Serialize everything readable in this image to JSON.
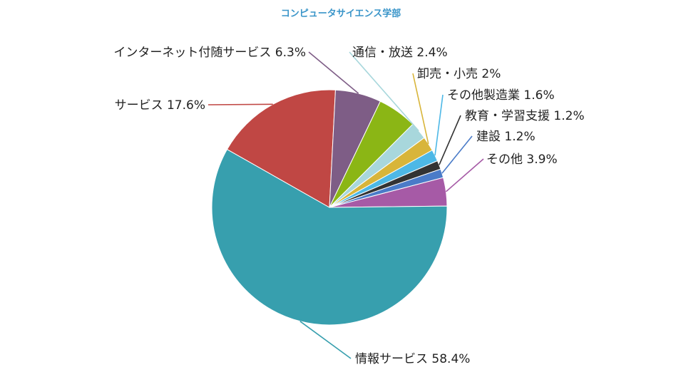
{
  "chart_data": {
    "type": "pie",
    "title": "コンピュータサイエンス学部",
    "slices": [
      {
        "label": "その他",
        "value": 3.9,
        "display": "3.9%",
        "color": "#a65aa6"
      },
      {
        "label": "情報サービス",
        "value": 58.4,
        "display": "58.4%",
        "color": "#379fae"
      },
      {
        "label": "サービス",
        "value": 17.6,
        "display": "17.6%",
        "color": "#c04744"
      },
      {
        "label": "インターネット付随サービス",
        "value": 6.3,
        "display": "6.3%",
        "color": "#7e5d86"
      },
      {
        "label": "通信・放送",
        "value": 2.4,
        "display": "2.4%",
        "color": "#a8d7dc"
      },
      {
        "label": "卸売・小売",
        "value": 2,
        "display": "2%",
        "color": "#d8b53a"
      },
      {
        "label": "その他製造業",
        "value": 1.6,
        "display": "1.6%",
        "color": "#4db8e6"
      },
      {
        "label": "教育・学習支援",
        "value": 1.2,
        "display": "1.2%",
        "color": "#333333"
      },
      {
        "label": "建設",
        "value": 1.2,
        "display": "1.2%",
        "color": "#4a7bc8"
      }
    ],
    "green_slice": {
      "value": 5.4,
      "color": "#8bb615"
    },
    "legend": "none"
  }
}
